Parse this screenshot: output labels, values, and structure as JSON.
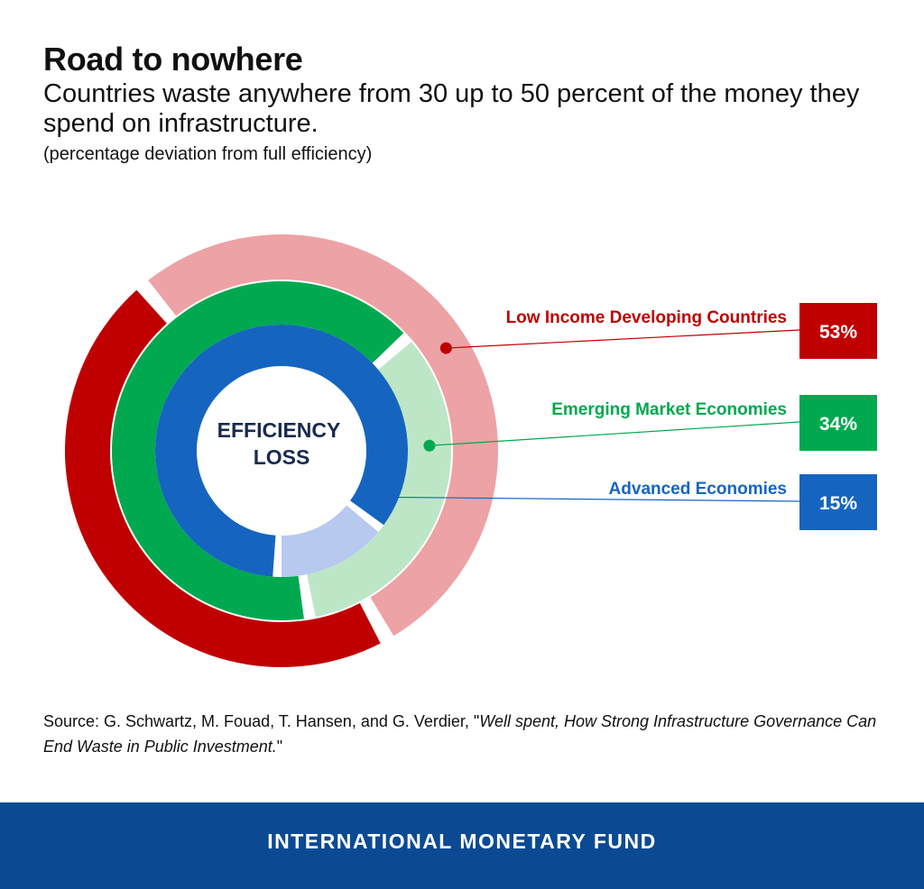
{
  "title": "Road to nowhere",
  "subtitle": "Countries waste anywhere from 30 up to 50 percent of the money they spend on infrastructure.",
  "unit_note": "(percentage deviation from full efficiency)",
  "center_label_line1": "EFFICIENCY",
  "center_label_line2": "LOSS",
  "source": {
    "prefix": "Source: G. Schwartz, M. Fouad, T. Hansen, and G. Verdier, \"",
    "italic": "Well spent, How Strong Infrastructure Governance Can End Waste in Public Investment.",
    "suffix": "\""
  },
  "footer": "INTERNATIONAL MONETARY FUND",
  "chart_data": {
    "type": "pie",
    "series": [
      {
        "name": "Low Income Developing Countries",
        "value": 53,
        "value_label": "53%",
        "color": "#c00000",
        "remainder_color": "#eda2a5"
      },
      {
        "name": "Emerging Market Economies",
        "value": 34,
        "value_label": "34%",
        "color": "#00a94f",
        "remainder_color": "#bde6c6"
      },
      {
        "name": "Advanced Economies",
        "value": 15,
        "value_label": "15%",
        "color": "#1565c0",
        "remainder_color": "#b7c9ee"
      }
    ],
    "layout": "concentric-donut",
    "unit": "percent"
  }
}
